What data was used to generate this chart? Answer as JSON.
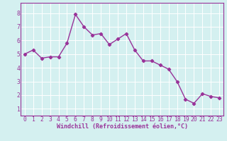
{
  "x": [
    0,
    1,
    2,
    3,
    4,
    5,
    6,
    7,
    8,
    9,
    10,
    11,
    12,
    13,
    14,
    15,
    16,
    17,
    18,
    19,
    20,
    21,
    22,
    23
  ],
  "y": [
    5.0,
    5.3,
    4.7,
    4.8,
    4.8,
    5.8,
    7.9,
    7.0,
    6.4,
    6.5,
    5.7,
    6.1,
    6.5,
    5.3,
    4.5,
    4.5,
    4.2,
    3.9,
    3.0,
    1.7,
    1.4,
    2.1,
    1.9,
    1.8
  ],
  "line_color": "#993399",
  "marker": "D",
  "markersize": 2.2,
  "linewidth": 1.0,
  "xlabel": "Windchill (Refroidissement éolien,°C)",
  "xlim": [
    -0.5,
    23.5
  ],
  "ylim": [
    0.5,
    8.75
  ],
  "yticks": [
    1,
    2,
    3,
    4,
    5,
    6,
    7,
    8
  ],
  "xticks": [
    0,
    1,
    2,
    3,
    4,
    5,
    6,
    7,
    8,
    9,
    10,
    11,
    12,
    13,
    14,
    15,
    16,
    17,
    18,
    19,
    20,
    21,
    22,
    23
  ],
  "bg_color": "#d4f0f0",
  "grid_color": "#ffffff",
  "tick_color": "#993399",
  "xlabel_color": "#993399",
  "xlabel_fontsize": 6.0,
  "tick_fontsize": 5.8,
  "border_color": "#993399"
}
